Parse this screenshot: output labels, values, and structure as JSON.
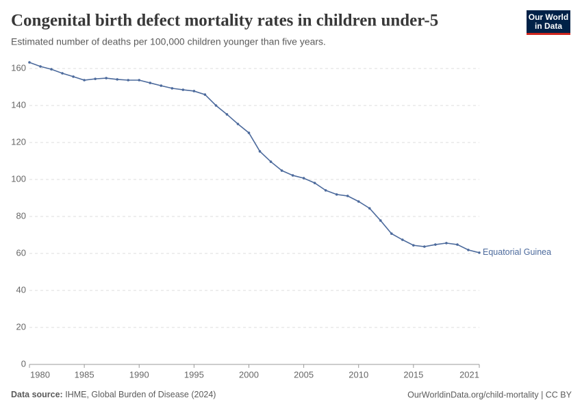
{
  "header": {
    "title": "Congenital birth defect mortality rates in children under-5",
    "subtitle": "Estimated number of deaths per 100,000 children younger than five years.",
    "logo": [
      "Our World",
      "in Data"
    ]
  },
  "chart_data": {
    "type": "line",
    "x": [
      1980,
      1981,
      1982,
      1983,
      1984,
      1985,
      1986,
      1987,
      1988,
      1989,
      1990,
      1991,
      1992,
      1993,
      1994,
      1995,
      1996,
      1997,
      1998,
      1999,
      2000,
      2001,
      2002,
      2003,
      2004,
      2005,
      2006,
      2007,
      2008,
      2009,
      2010,
      2011,
      2012,
      2013,
      2014,
      2015,
      2016,
      2017,
      2018,
      2019,
      2020,
      2021
    ],
    "series": [
      {
        "name": "Equatorial Guinea",
        "color": "#4c6a9c",
        "values": [
          163.3,
          161.1,
          159.6,
          157.4,
          155.6,
          153.7,
          154.4,
          154.8,
          154.1,
          153.7,
          153.7,
          152.2,
          150.7,
          149.3,
          148.5,
          147.8,
          145.9,
          140,
          135.2,
          130,
          125.2,
          115.2,
          109.6,
          104.8,
          102.2,
          100.7,
          98.1,
          94.1,
          91.9,
          91.1,
          88.1,
          84.4,
          77.8,
          70.7,
          67.4,
          64.4,
          63.7,
          64.8,
          65.6,
          64.8,
          61.9,
          60.4
        ]
      }
    ],
    "xlim": [
      1980,
      2021
    ],
    "xticks": [
      1980,
      1985,
      1990,
      1995,
      2000,
      2005,
      2010,
      2015,
      2021
    ],
    "ylim": [
      0,
      165
    ],
    "yticks": [
      0,
      20,
      40,
      60,
      80,
      100,
      120,
      140,
      160
    ],
    "grid": true
  },
  "footer": {
    "source_label": "Data source:",
    "source": "IHME, Global Burden of Disease (2024)",
    "url": "OurWorldinData.org/child-mortality | CC BY"
  }
}
